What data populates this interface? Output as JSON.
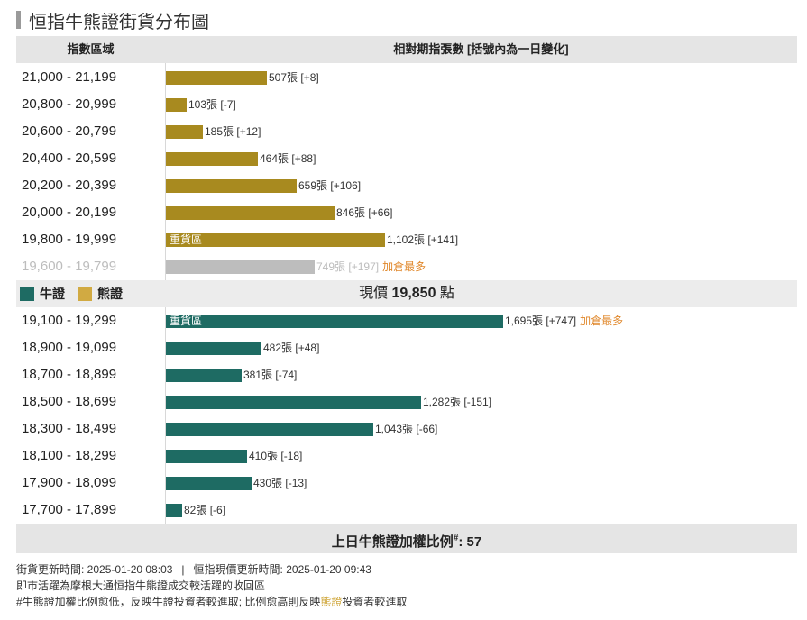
{
  "title": "恒指牛熊證街貨分布圖",
  "header": {
    "col_range": "指數區域",
    "col_contracts": "相對期指張數 [括號內為一日變化]"
  },
  "colors": {
    "bear": "#a88a1f",
    "bull": "#1e6b63",
    "faded": "#bdbdbd",
    "legend_bull": "#1e6b63",
    "legend_bear": "#d1aa42",
    "flag": "#e0872a"
  },
  "chart_data": {
    "type": "bar",
    "orientation": "horizontal",
    "title": "恒指牛熊證街貨分布圖",
    "xlabel": "相對期指張數 [括號內為一日變化]",
    "ylabel": "指數區域",
    "xlim": [
      0,
      1695
    ],
    "bear_rows": [
      {
        "range": "21,000 - 21,199",
        "value": 507,
        "value_text": "507張",
        "change_text": "[+8]"
      },
      {
        "range": "20,800 - 20,999",
        "value": 103,
        "value_text": "103張",
        "change_text": "[-7]"
      },
      {
        "range": "20,600 - 20,799",
        "value": 185,
        "value_text": "185張",
        "change_text": "[+12]"
      },
      {
        "range": "20,400 - 20,599",
        "value": 464,
        "value_text": "464張",
        "change_text": "[+88]"
      },
      {
        "range": "20,200 - 20,399",
        "value": 659,
        "value_text": "659張",
        "change_text": "[+106]"
      },
      {
        "range": "20,000 - 20,199",
        "value": 846,
        "value_text": "846張",
        "change_text": "[+66]"
      },
      {
        "range": "19,800 - 19,999",
        "value": 1102,
        "value_text": "1,102張",
        "change_text": "[+141]",
        "tag": "重貨區"
      },
      {
        "range": "19,600 - 19,799",
        "value": 749,
        "value_text": "749張",
        "change_text": "[+197]",
        "flag": "加倉最多",
        "faded": true
      }
    ],
    "bull_rows": [
      {
        "range": "19,100 - 19,299",
        "value": 1695,
        "value_text": "1,695張",
        "change_text": "[+747]",
        "tag": "重貨區",
        "flag": "加倉最多"
      },
      {
        "range": "18,900 - 19,099",
        "value": 482,
        "value_text": "482張",
        "change_text": "[+48]"
      },
      {
        "range": "18,700 - 18,899",
        "value": 381,
        "value_text": "381張",
        "change_text": "[-74]"
      },
      {
        "range": "18,500 - 18,699",
        "value": 1282,
        "value_text": "1,282張",
        "change_text": "[-151]"
      },
      {
        "range": "18,300 - 18,499",
        "value": 1043,
        "value_text": "1,043張",
        "change_text": "[-66]"
      },
      {
        "range": "18,100 - 18,299",
        "value": 410,
        "value_text": "410張",
        "change_text": "[-18]"
      },
      {
        "range": "17,900 - 18,099",
        "value": 430,
        "value_text": "430張",
        "change_text": "[-13]"
      },
      {
        "range": "17,700 - 17,899",
        "value": 82,
        "value_text": "82張",
        "change_text": "[-6]"
      }
    ],
    "legend": [
      "牛證",
      "熊證"
    ]
  },
  "legend": {
    "bull": "牛證",
    "bear": "熊證"
  },
  "price": {
    "label": "現價",
    "value": "19,850",
    "unit": "點"
  },
  "ratio": {
    "label": "上日牛熊證加權比例",
    "sup": "#",
    "value": ": 57"
  },
  "footer": {
    "line1_a": "街貨更新時間: 2025-01-20 08:03",
    "line1_sep": "|",
    "line1_b": "恒指現價更新時間: 2025-01-20 09:43",
    "line2": "即市活躍為摩根大通恒指牛熊證成交較活躍的收回區",
    "line3_a": "#牛熊證加權比例愈低，反映",
    "line3_b": "牛證",
    "line3_c": "投資者較進取; 比例愈高則反映",
    "line3_d": "熊證",
    "line3_e": "投資者較進取"
  }
}
